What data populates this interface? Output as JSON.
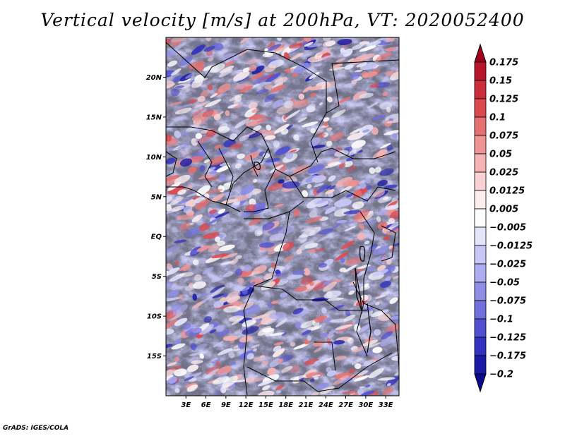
{
  "chart_data": {
    "type": "heatmap",
    "title": "Vertical velocity [m/s] at 200hPa, VT: 2020052400",
    "variable": "Vertical velocity",
    "units": "m/s",
    "level": "200hPa",
    "valid_time": "2020052400",
    "xlabel": "",
    "ylabel": "",
    "xlim": [
      0,
      35
    ],
    "ylim": [
      -20,
      25
    ],
    "x_ticks": [
      {
        "value": 3,
        "label": "3E"
      },
      {
        "value": 6,
        "label": "6E"
      },
      {
        "value": 9,
        "label": "9E"
      },
      {
        "value": 12,
        "label": "12E"
      },
      {
        "value": 15,
        "label": "15E"
      },
      {
        "value": 18,
        "label": "18E"
      },
      {
        "value": 21,
        "label": "21E"
      },
      {
        "value": 24,
        "label": "24E"
      },
      {
        "value": 27,
        "label": "27E"
      },
      {
        "value": 30,
        "label": "30E"
      },
      {
        "value": 33,
        "label": "33E"
      }
    ],
    "y_ticks": [
      {
        "value": 20,
        "label": "20N"
      },
      {
        "value": 15,
        "label": "15N"
      },
      {
        "value": 10,
        "label": "10N"
      },
      {
        "value": 5,
        "label": "5N"
      },
      {
        "value": 0,
        "label": "EQ"
      },
      {
        "value": -5,
        "label": "5S"
      },
      {
        "value": -10,
        "label": "10S"
      },
      {
        "value": -15,
        "label": "15S"
      }
    ],
    "colorbar": {
      "levels": [
        0.175,
        0.15,
        0.125,
        0.1,
        0.075,
        0.05,
        0.025,
        0.0125,
        0.005,
        -0.005,
        -0.0125,
        -0.025,
        -0.05,
        -0.075,
        -0.1,
        -0.125,
        -0.175,
        -0.2
      ],
      "labels": [
        "0.175",
        "0.15",
        "0.125",
        "0.1",
        "0.075",
        "0.05",
        "0.025",
        "0.0125",
        "0.005",
        "−0.005",
        "−0.0125",
        "−0.025",
        "−0.05",
        "−0.075",
        "−0.1",
        "−0.125",
        "−0.175",
        "−0.2"
      ],
      "colors": [
        "#a0001e",
        "#b8142a",
        "#cc2c3a",
        "#dc4a50",
        "#e67070",
        "#ee9494",
        "#f4b4b4",
        "#f8d2d2",
        "#fceeee",
        "#ffffff",
        "#e4e4fa",
        "#c8c8f6",
        "#acacf0",
        "#8e8ee6",
        "#7070dc",
        "#5050d0",
        "#3232c0",
        "#1a1aa8",
        "#0a0a8a"
      ]
    },
    "grid": false,
    "legend": "right"
  },
  "footer": "GrADS: IGES/COLA"
}
